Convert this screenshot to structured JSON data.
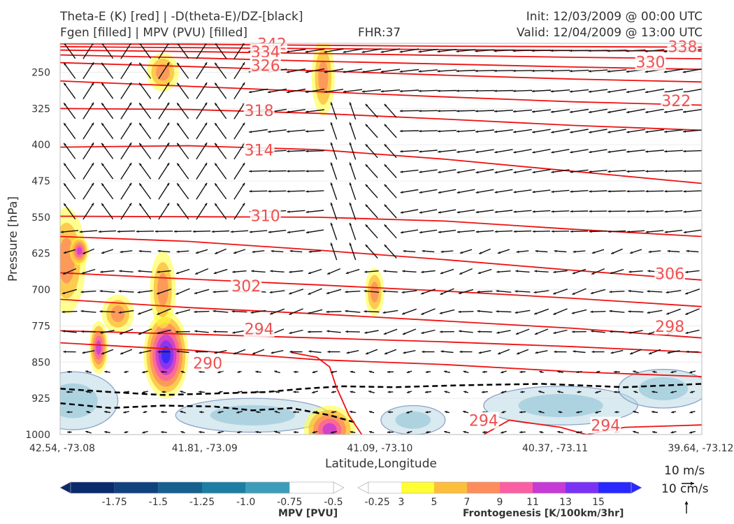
{
  "header": {
    "left_line1": "Theta-E (K) [red] | -D(theta-E)/DZ-[black]",
    "left_line2": "Fgen [filled] | MPV (PVU) [filled]",
    "fhr": "FHR:37",
    "init": "Init: 12/03/2009 @ 00:00 UTC",
    "valid": "Valid: 12/04/2009 @ 13:00 UTC"
  },
  "chart_data": {
    "type": "cross-section",
    "xlabel": "Latitude,Longitude",
    "ylabel": "Pressure [hPa]",
    "x_ticks": [
      "42.54, -73.08",
      "41.81, -73.09",
      "41.09, -73.10",
      "40.37, -73.11",
      "39.64, -73.12"
    ],
    "y_ticks": [
      250,
      325,
      400,
      475,
      550,
      625,
      700,
      775,
      850,
      925,
      1000
    ],
    "ylim": [
      1000,
      190
    ],
    "y_inverted": true,
    "theta_e_isentropes_K": [
      {
        "label": "342",
        "p": [
          191,
          192,
          194,
          196,
          197,
          198
        ]
      },
      {
        "label": "338",
        "p": [
          197,
          199,
          201,
          203,
          205,
          206
        ]
      },
      {
        "label": "334",
        "p": [
          204,
          207,
          211,
          215,
          219,
          222
        ]
      },
      {
        "label": "330",
        "p": [
          214,
          220,
          227,
          233,
          239,
          244
        ]
      },
      {
        "label": "326",
        "p": [
          230,
          238,
          247,
          256,
          264,
          270
        ]
      },
      {
        "label": "322",
        "p": [
          268,
          279,
          290,
          301,
          311,
          318
        ]
      },
      {
        "label": "318",
        "p": [
          325,
          327,
          335,
          347,
          360,
          370
        ]
      },
      {
        "label": "314",
        "p": [
          405,
          402,
          410,
          430,
          455,
          480
        ]
      },
      {
        "label": "310",
        "p": [
          548,
          549,
          550,
          558,
          575,
          590
        ]
      },
      {
        "label": "306",
        "p": [
          590,
          600,
          618,
          638,
          660,
          680
        ]
      },
      {
        "label": "302",
        "p": [
          665,
          678,
          690,
          703,
          718,
          735
        ]
      },
      {
        "label": "298",
        "p": [
          720,
          737,
          750,
          765,
          780,
          800
        ]
      },
      {
        "label": "294",
        "p": [
          785,
          792,
          800,
          808,
          818,
          830
        ]
      },
      {
        "label": "290",
        "p": [
          810,
          825,
          845,
          855,
          870,
          880
        ]
      }
    ],
    "theta_e_labels": [
      {
        "text": "342",
        "xf": 0.33,
        "p": 192
      },
      {
        "text": "338",
        "xf": 0.97,
        "p": 198
      },
      {
        "text": "334",
        "xf": 0.32,
        "p": 209
      },
      {
        "text": "330",
        "xf": 0.92,
        "p": 230
      },
      {
        "text": "326",
        "xf": 0.32,
        "p": 237
      },
      {
        "text": "322",
        "xf": 0.96,
        "p": 310
      },
      {
        "text": "318",
        "xf": 0.31,
        "p": 330
      },
      {
        "text": "314",
        "xf": 0.31,
        "p": 412
      },
      {
        "text": "310",
        "xf": 0.32,
        "p": 548
      },
      {
        "text": "306",
        "xf": 0.95,
        "p": 668
      },
      {
        "text": "302",
        "xf": 0.29,
        "p": 693
      },
      {
        "text": "298",
        "xf": 0.95,
        "p": 777
      },
      {
        "text": "294",
        "xf": 0.31,
        "p": 782
      },
      {
        "text": "290",
        "xf": 0.23,
        "p": 853
      },
      {
        "text": "294",
        "xf": 0.66,
        "p": 972
      },
      {
        "text": "294",
        "xf": 0.85,
        "p": 982
      }
    ],
    "dthetae_dz_contours": [
      {
        "xf": [
          0,
          0.08,
          0.16,
          0.24,
          0.32,
          0.38,
          0.44,
          0.52,
          0.62,
          0.75,
          0.88,
          1
        ],
        "p": [
          905,
          912,
          918,
          915,
          912,
          905,
          900,
          902,
          898,
          895,
          902,
          895
        ]
      },
      {
        "xf": [
          0,
          0.08,
          0.16,
          0.24,
          0.3,
          0.36,
          0.42,
          0.46
        ],
        "p": [
          935,
          945,
          940,
          942,
          950,
          945,
          960,
          975
        ]
      }
    ],
    "fgen_levels": [
      3,
      5,
      7,
      9,
      11,
      13,
      15
    ],
    "fgen_colors": [
      "#ffffff",
      "#ffff33",
      "#fdbe3c",
      "#fd8d5c",
      "#fb5fa3",
      "#c63ad6",
      "#7a33f5",
      "#2828ff"
    ],
    "fgen_blobs": [
      {
        "xf": 0.165,
        "p": 835,
        "rx": 0.035,
        "rp": 90,
        "lvl": 7
      },
      {
        "xf": 0.16,
        "p": 700,
        "rx": 0.02,
        "rp": 80,
        "lvl": 3
      },
      {
        "xf": 0.01,
        "p": 640,
        "rx": 0.03,
        "rp": 110,
        "lvl": 3
      },
      {
        "xf": 0.03,
        "p": 620,
        "rx": 0.015,
        "rp": 30,
        "lvl": 5
      },
      {
        "xf": 0.06,
        "p": 820,
        "rx": 0.015,
        "rp": 55,
        "lvl": 5
      },
      {
        "xf": 0.16,
        "p": 250,
        "rx": 0.025,
        "rp": 40,
        "lvl": 3
      },
      {
        "xf": 0.41,
        "p": 260,
        "rx": 0.018,
        "rp": 80,
        "lvl": 3
      },
      {
        "xf": 0.49,
        "p": 705,
        "rx": 0.015,
        "rp": 50,
        "lvl": 3
      },
      {
        "xf": 0.42,
        "p": 990,
        "rx": 0.04,
        "rp": 50,
        "lvl": 5
      },
      {
        "xf": 0.09,
        "p": 750,
        "rx": 0.025,
        "rp": 40,
        "lvl": 3
      }
    ],
    "mpv_levels": [
      -1.75,
      -1.5,
      -1.25,
      -1.0,
      -0.75,
      -0.5,
      -0.25
    ],
    "mpv_colors": [
      "#0b2a6b",
      "#10427e",
      "#15608f",
      "#1d7ea4",
      "#3e9cbb",
      "#78b8ce",
      "#b9d9e4",
      "#ffffff"
    ],
    "mpv_regions": [
      {
        "xf": 0.02,
        "p": 930,
        "rx": 0.07,
        "rp": 60
      },
      {
        "xf": 0.3,
        "p": 960,
        "rx": 0.12,
        "rp": 35
      },
      {
        "xf": 0.55,
        "p": 970,
        "rx": 0.05,
        "rp": 30
      },
      {
        "xf": 0.78,
        "p": 940,
        "rx": 0.12,
        "rp": 40
      },
      {
        "xf": 0.94,
        "p": 905,
        "rx": 0.07,
        "rp": 40
      }
    ],
    "mpv_colorbar_label": "MPV [PVU]",
    "fgen_colorbar_label": "Frontogenesis [K/100km/3hr]",
    "mpv_tick_labels": [
      "-1.75",
      "-1.5",
      "-1.25",
      "-1.0",
      "-0.75",
      "-0.5",
      "-0.25"
    ],
    "fgen_tick_labels": [
      "3",
      "5",
      "7",
      "9",
      "11",
      "13",
      "15"
    ],
    "wind_reference_horizontal": "10 m/s",
    "wind_reference_vertical": "10 cm/s",
    "grid": true
  }
}
